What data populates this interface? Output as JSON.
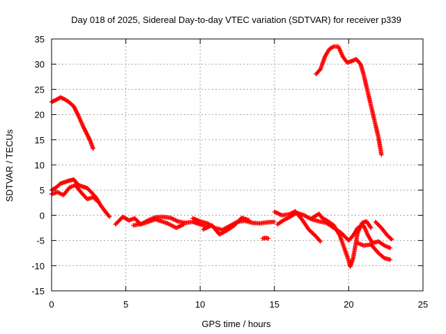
{
  "chart_data": {
    "type": "scatter",
    "title": "Day 018 of 2025, Sidereal Day-to-day VTEC variation (SDTVAR) for receiver p339",
    "xlabel": "GPS time / hours",
    "ylabel": "SDTVAR / TECUs",
    "xlim": [
      0,
      25
    ],
    "ylim": [
      -15,
      35
    ],
    "xticks": [
      0,
      5,
      10,
      15,
      20,
      25
    ],
    "yticks": [
      -15,
      -10,
      -5,
      0,
      5,
      10,
      15,
      20,
      25,
      30,
      35
    ],
    "grid": true,
    "marker": "+",
    "color": "#ff0000",
    "series": [
      {
        "name": "arc-early-high",
        "points": [
          [
            0,
            22.5
          ],
          [
            0.3,
            22.9
          ],
          [
            0.6,
            23.4
          ],
          [
            0.9,
            23.0
          ],
          [
            1.2,
            22.4
          ],
          [
            1.5,
            21.6
          ],
          [
            1.8,
            19.8
          ],
          [
            2.1,
            17.8
          ],
          [
            2.4,
            16.0
          ],
          [
            2.6,
            14.8
          ],
          [
            2.8,
            13.2
          ]
        ]
      },
      {
        "name": "arc-early-low",
        "points": [
          [
            0,
            5.0
          ],
          [
            0.3,
            5.5
          ],
          [
            0.6,
            6.3
          ],
          [
            0.9,
            6.6
          ],
          [
            1.2,
            6.9
          ],
          [
            1.5,
            7.1
          ],
          [
            1.8,
            6.0
          ],
          [
            2.1,
            5.7
          ],
          [
            2.4,
            5.4
          ],
          [
            2.7,
            4.5
          ],
          [
            3.0,
            3.5
          ],
          [
            3.3,
            2.0
          ],
          [
            3.6,
            0.8
          ],
          [
            3.9,
            -0.3
          ]
        ]
      },
      {
        "name": "arc-early-low-b",
        "points": [
          [
            0,
            4.2
          ],
          [
            0.4,
            4.6
          ],
          [
            0.8,
            4.0
          ],
          [
            1.2,
            5.5
          ],
          [
            1.6,
            6.0
          ],
          [
            2.0,
            4.5
          ],
          [
            2.4,
            3.2
          ],
          [
            2.8,
            3.6
          ],
          [
            3.2,
            2.5
          ]
        ]
      },
      {
        "name": "arc-morning",
        "points": [
          [
            4.3,
            -1.8
          ],
          [
            4.8,
            -0.3
          ],
          [
            5.2,
            -1.0
          ],
          [
            5.6,
            -0.6
          ],
          [
            6.0,
            -1.8
          ],
          [
            6.5,
            -1.0
          ],
          [
            7.0,
            -0.4
          ],
          [
            7.5,
            -0.3
          ],
          [
            8.0,
            -0.5
          ],
          [
            8.5,
            -1.2
          ],
          [
            9.0,
            -1.5
          ],
          [
            9.5,
            -1.3
          ],
          [
            10.0,
            -1.8
          ],
          [
            10.5,
            -2.2
          ]
        ]
      },
      {
        "name": "arc-morning-b",
        "points": [
          [
            5.5,
            -2.0
          ],
          [
            6.2,
            -1.6
          ],
          [
            7.0,
            -0.8
          ],
          [
            7.8,
            -1.6
          ],
          [
            8.4,
            -2.5
          ],
          [
            8.9,
            -1.8
          ]
        ]
      },
      {
        "name": "arc-midday",
        "points": [
          [
            9.5,
            -0.6
          ],
          [
            10.0,
            -1.2
          ],
          [
            10.5,
            -1.6
          ],
          [
            11.0,
            -2.5
          ],
          [
            11.5,
            -2.9
          ],
          [
            12.0,
            -2.1
          ],
          [
            12.5,
            -1.3
          ],
          [
            13.0,
            -1.1
          ],
          [
            13.5,
            -1.5
          ],
          [
            14.0,
            -1.6
          ],
          [
            14.5,
            -1.4
          ],
          [
            15.0,
            -1.3
          ]
        ]
      },
      {
        "name": "arc-midday-b",
        "points": [
          [
            10.2,
            -2.8
          ],
          [
            10.8,
            -2.0
          ],
          [
            11.3,
            -3.8
          ],
          [
            11.8,
            -3.0
          ],
          [
            12.3,
            -2.0
          ],
          [
            12.8,
            -0.5
          ],
          [
            13.3,
            -1.0
          ]
        ]
      },
      {
        "name": "arc-midday-c",
        "points": [
          [
            14.2,
            -4.6
          ],
          [
            14.4,
            -4.5
          ],
          [
            14.6,
            -4.6
          ]
        ]
      },
      {
        "name": "arc-afternoon",
        "points": [
          [
            15.2,
            -1.8
          ],
          [
            15.6,
            -1.0
          ],
          [
            16.0,
            -0.4
          ],
          [
            16.5,
            0.5
          ],
          [
            17.0,
            0.0
          ],
          [
            17.5,
            -0.8
          ],
          [
            18.0,
            -1.2
          ],
          [
            18.5,
            -1.5
          ],
          [
            19.0,
            -2.5
          ],
          [
            19.5,
            -3.5
          ],
          [
            20.0,
            -5.0
          ],
          [
            20.3,
            -4.0
          ],
          [
            20.6,
            -2.5
          ],
          [
            21.0,
            -2.0
          ],
          [
            21.3,
            -4.0
          ],
          [
            21.6,
            -5.5
          ],
          [
            22.0,
            -5.2
          ],
          [
            22.4,
            -6.0
          ],
          [
            22.8,
            -6.5
          ]
        ]
      },
      {
        "name": "arc-afternoon-b",
        "points": [
          [
            15.0,
            0.7
          ],
          [
            15.5,
            0.0
          ],
          [
            16.0,
            0.2
          ],
          [
            16.4,
            0.8
          ],
          [
            16.9,
            -1.0
          ],
          [
            17.3,
            -2.8
          ],
          [
            17.8,
            -4.2
          ],
          [
            18.1,
            -5.2
          ]
        ]
      },
      {
        "name": "arc-afternoon-c",
        "points": [
          [
            17.5,
            -0.6
          ],
          [
            18.0,
            0.3
          ],
          [
            18.2,
            -0.5
          ],
          [
            18.5,
            -1.0
          ],
          [
            19.0,
            -2.0
          ],
          [
            19.4,
            -4.0
          ],
          [
            19.7,
            -6.5
          ],
          [
            20.0,
            -9.0
          ],
          [
            20.1,
            -10.2
          ],
          [
            20.3,
            -8.5
          ],
          [
            20.6,
            -3.5
          ],
          [
            20.9,
            -1.5
          ],
          [
            21.2,
            -1.2
          ],
          [
            21.5,
            -2.5
          ]
        ]
      },
      {
        "name": "arc-afternoon-d",
        "points": [
          [
            21.8,
            -1.3
          ],
          [
            22.2,
            -2.5
          ],
          [
            22.6,
            -4.0
          ],
          [
            22.9,
            -4.8
          ]
        ]
      },
      {
        "name": "arc-afternoon-e",
        "points": [
          [
            20.6,
            -5.5
          ],
          [
            21.0,
            -6.0
          ],
          [
            21.5,
            -5.8
          ],
          [
            22.0,
            -7.5
          ],
          [
            22.4,
            -8.5
          ],
          [
            22.8,
            -8.8
          ]
        ]
      },
      {
        "name": "arc-evening-high",
        "points": [
          [
            17.8,
            28.0
          ],
          [
            18.1,
            29.0
          ],
          [
            18.4,
            31.5
          ],
          [
            18.7,
            33.0
          ],
          [
            19.0,
            33.5
          ],
          [
            19.3,
            33.5
          ],
          [
            19.6,
            31.5
          ],
          [
            19.9,
            30.3
          ],
          [
            20.2,
            30.6
          ],
          [
            20.5,
            31.0
          ],
          [
            20.8,
            30.0
          ],
          [
            21.0,
            28.0
          ],
          [
            21.2,
            25.5
          ],
          [
            21.4,
            23.0
          ],
          [
            21.6,
            20.5
          ],
          [
            21.8,
            18.0
          ],
          [
            22.0,
            15.5
          ],
          [
            22.2,
            12.0
          ]
        ]
      }
    ]
  }
}
